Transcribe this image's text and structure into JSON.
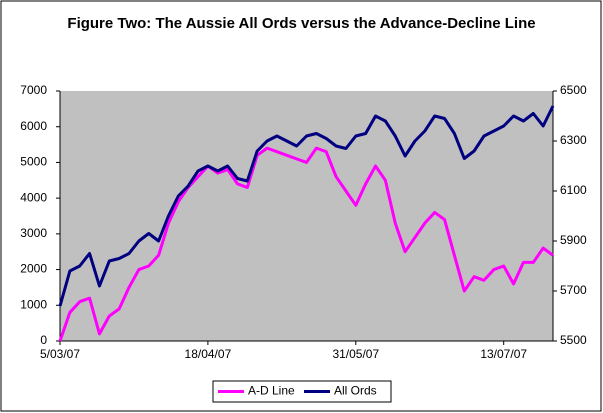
{
  "chart_data": {
    "type": "line",
    "title": "Figure Two: The Aussie All Ords versus the Advance-Decline Line",
    "categories": [
      "5/03/07",
      null,
      null,
      null,
      null,
      null,
      null,
      null,
      null,
      null,
      null,
      null,
      null,
      null,
      null,
      "18/04/07",
      null,
      null,
      null,
      null,
      null,
      null,
      null,
      null,
      null,
      null,
      null,
      null,
      null,
      null,
      "31/05/07",
      null,
      null,
      null,
      null,
      null,
      null,
      null,
      null,
      null,
      null,
      null,
      null,
      null,
      null,
      "13/07/07",
      null,
      null,
      null,
      null,
      null
    ],
    "series": [
      {
        "name": "A-D Line",
        "color": "#ff00ff",
        "values": [
          0,
          800,
          1100,
          1200,
          200,
          700,
          900,
          1500,
          2000,
          2100,
          2400,
          3300,
          3900,
          4300,
          4600,
          4900,
          4700,
          4800,
          4400,
          4300,
          5200,
          5400,
          5300,
          5200,
          5100,
          5000,
          5400,
          5300,
          4600,
          4200,
          3800,
          4400,
          4900,
          4500,
          3300,
          2500,
          2900,
          3300,
          3600,
          3400,
          2400,
          1400,
          1800,
          1700,
          2000,
          2100,
          1600,
          2200,
          2200,
          2600,
          2400
        ]
      },
      {
        "name": "All Ords",
        "color": "#000080",
        "axis": "y2",
        "values": [
          5640,
          5780,
          5800,
          5850,
          5720,
          5820,
          5830,
          5850,
          5900,
          5930,
          5900,
          6000,
          6080,
          6120,
          6180,
          6200,
          6180,
          6200,
          6150,
          6140,
          6260,
          6300,
          6320,
          6300,
          6280,
          6320,
          6330,
          6310,
          6280,
          6270,
          6320,
          6330,
          6400,
          6380,
          6320,
          6240,
          6300,
          6340,
          6400,
          6390,
          6330,
          6230,
          6260,
          6320,
          6340,
          6360,
          6400,
          6380,
          6410,
          6360,
          6440
        ]
      }
    ],
    "ylim": [
      0,
      7000
    ],
    "yticks": [
      0,
      1000,
      2000,
      3000,
      4000,
      5000,
      6000,
      7000
    ],
    "y2lim": [
      5500,
      6500
    ],
    "y2ticks": [
      5500,
      5700,
      5900,
      6100,
      6300,
      6500
    ],
    "legend": "bottom"
  }
}
